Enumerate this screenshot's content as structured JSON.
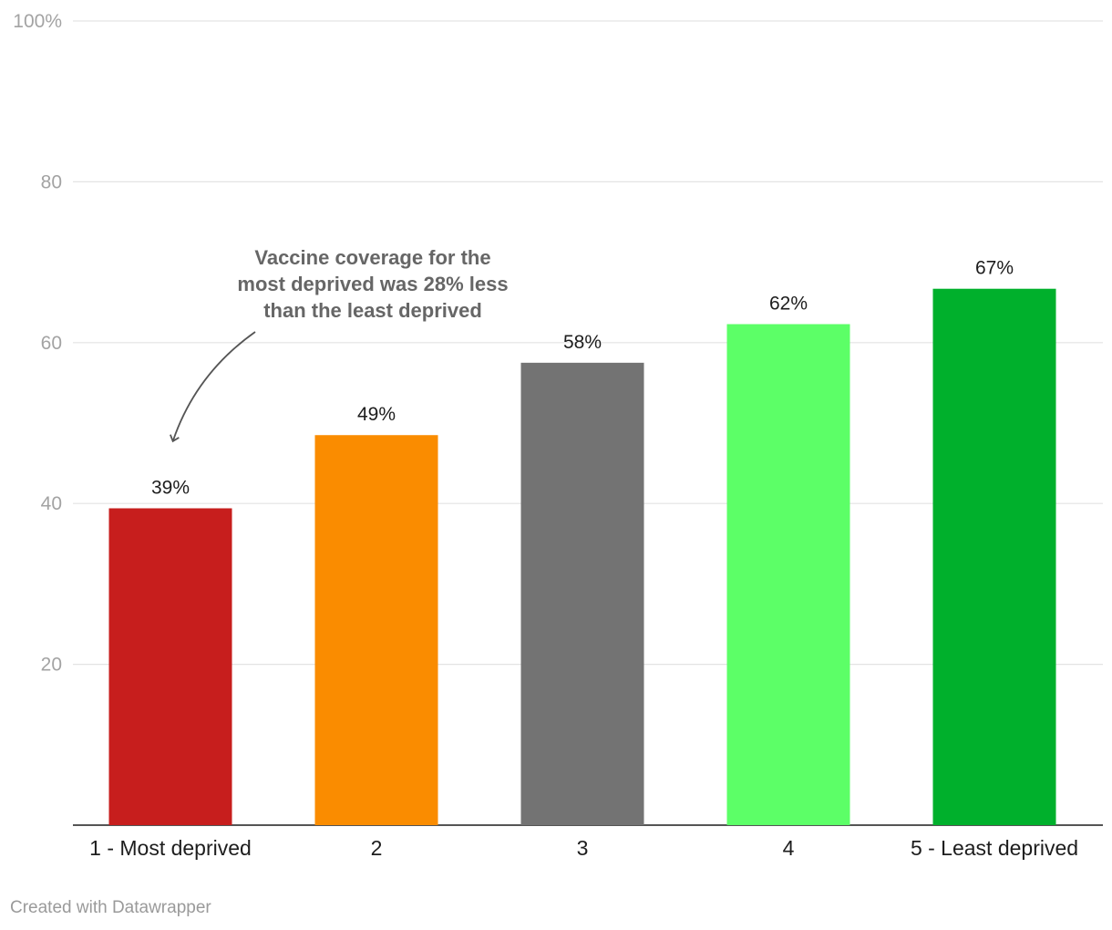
{
  "chart_data": {
    "type": "bar",
    "categories": [
      "1 - Most deprived",
      "2",
      "3",
      "4",
      "5 - Least deprived"
    ],
    "values": [
      39.4,
      48.5,
      57.5,
      62.3,
      66.7
    ],
    "value_labels": [
      "39%",
      "49%",
      "58%",
      "62%",
      "67%"
    ],
    "colors": [
      "#c71e1d",
      "#fa8c00",
      "#737373",
      "#5cff67",
      "#00b02c"
    ],
    "ylim": [
      0,
      100
    ],
    "yticks": [
      {
        "value": 20,
        "label": "20"
      },
      {
        "value": 40,
        "label": "40"
      },
      {
        "value": 60,
        "label": "60"
      },
      {
        "value": 80,
        "label": "80"
      },
      {
        "value": 100,
        "label": "100%"
      }
    ],
    "grid": true,
    "annotation": {
      "lines": [
        "Vaccine coverage for the",
        "most deprived was 28% less",
        "than the least deprived"
      ],
      "target_category": "1 - Most deprived"
    }
  },
  "credit": "Created with Datawrapper"
}
